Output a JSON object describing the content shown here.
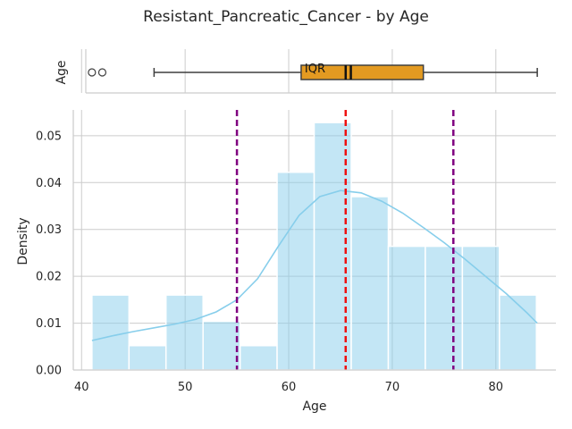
{
  "chart_data": {
    "type": "histogram+kde+boxplot",
    "title": "Resistant_Pancreatic_Cancer - by Age",
    "box": {
      "ylabel": "Age",
      "label": "IQR",
      "q1": 61.2,
      "q3": 73.0,
      "median": 66.0,
      "mean": 65.5,
      "whisker_low": 47.0,
      "whisker_high": 84.0,
      "outliers": [
        41.0,
        42.0
      ],
      "color": "#e39a21"
    },
    "hist": {
      "xlabel": "Age",
      "ylabel": "Density",
      "xlim": [
        39.2,
        85.8
      ],
      "ylim": [
        0,
        0.0555
      ],
      "xticks": [
        40,
        50,
        60,
        70,
        80
      ],
      "yticks": [
        "0.00",
        "0.01",
        "0.02",
        "0.03",
        "0.04",
        "0.05"
      ],
      "yticks_values": [
        0,
        0.01,
        0.02,
        0.03,
        0.04,
        0.05
      ],
      "bin_edges": [
        41.0,
        44.58,
        48.15,
        51.73,
        55.31,
        58.88,
        62.46,
        66.04,
        69.62,
        73.19,
        76.77,
        80.35,
        83.92
      ],
      "densities": [
        0.016,
        0.0052,
        0.016,
        0.0104,
        0.0052,
        0.0422,
        0.0528,
        0.037,
        0.0264,
        0.0264,
        0.0264,
        0.016
      ],
      "bar_color": "#87ceeb",
      "kde": {
        "x": [
          41,
          43,
          45,
          47,
          49,
          51,
          53,
          55,
          57,
          59,
          61,
          63,
          65,
          67,
          69,
          71,
          73,
          75,
          77,
          79,
          81,
          83,
          84
        ],
        "y": [
          0.0063,
          0.0073,
          0.0082,
          0.009,
          0.0098,
          0.0108,
          0.0124,
          0.015,
          0.0195,
          0.0264,
          0.033,
          0.037,
          0.0383,
          0.0378,
          0.036,
          0.0335,
          0.0304,
          0.0272,
          0.0237,
          0.02,
          0.0163,
          0.0122,
          0.01
        ],
        "color": "#87ceeb"
      },
      "vlines": [
        {
          "x": 55.0,
          "color": "#800080"
        },
        {
          "x": 65.5,
          "color": "#ee1111"
        },
        {
          "x": 75.9,
          "color": "#800080"
        }
      ]
    }
  }
}
